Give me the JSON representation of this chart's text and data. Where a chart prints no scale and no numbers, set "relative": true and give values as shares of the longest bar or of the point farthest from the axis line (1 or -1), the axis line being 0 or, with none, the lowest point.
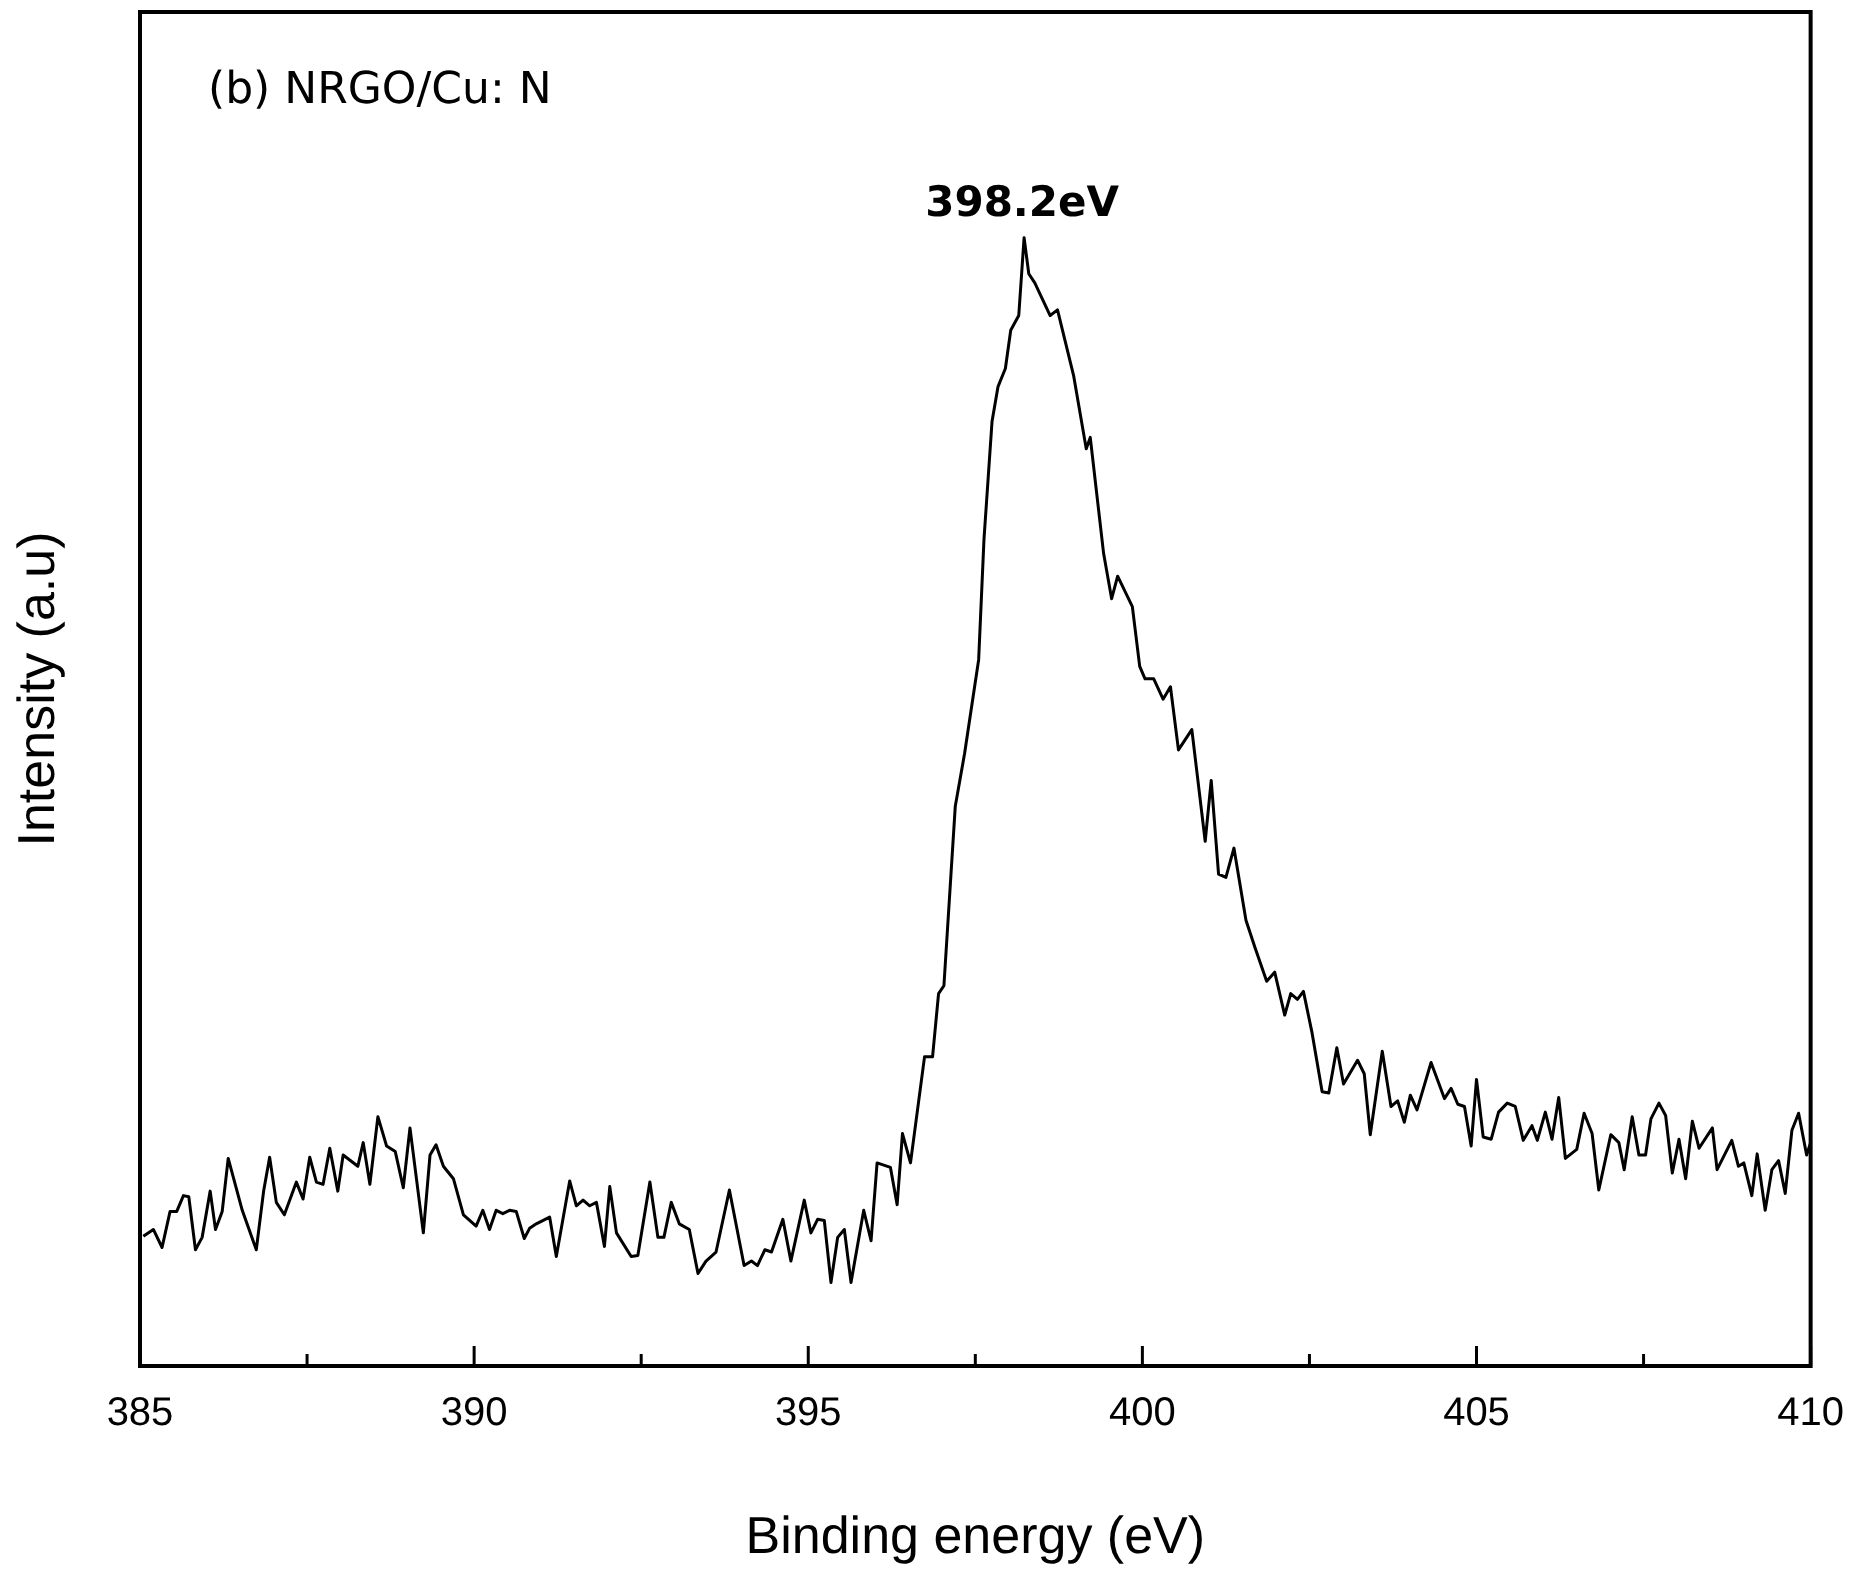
{
  "chart_data": {
    "type": "line",
    "relative": true,
    "xlabel": "Binding energy (eV)",
    "ylabel": "Intensity (a.u)",
    "annotations": [
      "(b) NRGO/Cu: N",
      {
        "text": "398.2eV",
        "x": 398.2,
        "y": 1
      }
    ],
    "xlim": [
      385,
      410
    ],
    "xticks": [
      385,
      {
        "value": 387.5,
        "label": null
      },
      390,
      {
        "value": 392.5,
        "label": null
      },
      395,
      {
        "value": 397.5,
        "label": null
      },
      400,
      {
        "value": 402.5,
        "label": null
      },
      405,
      {
        "value": 407.5,
        "label": null
      },
      410
    ],
    "grid": false,
    "legend": false,
    "marker": "none",
    "line_style": "solid",
    "series": [
      {
        "color": "#000000",
        "x": [
          385.05,
          385.2,
          385.33,
          385.45,
          385.55,
          385.65,
          385.73,
          385.83,
          385.93,
          386.05,
          386.13,
          386.23,
          386.32,
          386.53,
          386.74,
          386.85,
          386.94,
          387.04,
          387.16,
          387.34,
          387.44,
          387.54,
          387.64,
          387.74,
          387.84,
          387.96,
          388.04,
          388.26,
          388.34,
          388.44,
          388.56,
          388.69,
          388.82,
          388.94,
          389.04,
          389.24,
          389.34,
          389.43,
          389.54,
          389.69,
          389.84,
          390.03,
          390.13,
          390.23,
          390.33,
          390.43,
          390.53,
          390.63,
          390.75,
          390.83,
          390.93,
          391.13,
          391.23,
          391.43,
          391.53,
          391.63,
          391.73,
          391.83,
          391.95,
          392.03,
          392.13,
          392.35,
          392.45,
          392.63,
          392.75,
          392.84,
          392.95,
          393.07,
          393.22,
          393.35,
          393.47,
          393.62,
          393.82,
          394.04,
          394.15,
          394.24,
          394.35,
          394.45,
          394.62,
          394.74,
          394.94,
          395.04,
          395.14,
          395.24,
          395.34,
          395.44,
          395.54,
          395.64,
          395.83,
          395.94,
          396.03,
          396.23,
          396.33,
          396.41,
          396.53,
          396.74,
          396.86,
          396.95,
          397.03,
          397.2,
          397.34,
          397.55,
          397.63,
          397.75,
          397.84,
          397.95,
          398.03,
          398.15,
          398.23,
          398.3,
          398.39,
          398.62,
          398.73,
          398.97,
          399.16,
          399.22,
          399.42,
          399.54,
          399.63,
          399.85,
          399.96,
          400.04,
          400.17,
          400.31,
          400.42,
          400.54,
          400.74,
          400.94,
          401.03,
          401.14,
          401.25,
          401.37,
          401.55,
          401.69,
          401.86,
          401.98,
          402.13,
          402.22,
          402.32,
          402.41,
          402.54,
          402.69,
          402.79,
          402.91,
          403.01,
          403.22,
          403.32,
          403.41,
          403.59,
          403.72,
          403.82,
          403.92,
          404.01,
          404.11,
          404.32,
          404.52,
          404.62,
          404.72,
          404.82,
          404.92,
          405.0,
          405.1,
          405.22,
          405.33,
          405.46,
          405.58,
          405.7,
          405.83,
          405.91,
          406.03,
          406.13,
          406.23,
          406.33,
          406.5,
          406.61,
          406.73,
          406.83,
          407.01,
          407.13,
          407.21,
          407.33,
          407.43,
          407.53,
          407.61,
          407.73,
          407.83,
          407.93,
          408.03,
          408.13,
          408.23,
          408.33,
          408.53,
          408.6,
          408.82,
          408.92,
          409.0,
          409.12,
          409.2,
          409.32,
          409.42,
          409.52,
          409.62,
          409.72,
          409.82,
          409.94,
          410.0
        ],
        "values": [
          0.115,
          0.121,
          0.105,
          0.137,
          0.137,
          0.151,
          0.15,
          0.103,
          0.114,
          0.155,
          0.121,
          0.137,
          0.184,
          0.138,
          0.103,
          0.155,
          0.185,
          0.145,
          0.134,
          0.163,
          0.148,
          0.185,
          0.163,
          0.161,
          0.193,
          0.155,
          0.187,
          0.177,
          0.198,
          0.161,
          0.221,
          0.195,
          0.19,
          0.158,
          0.211,
          0.118,
          0.187,
          0.196,
          0.177,
          0.166,
          0.134,
          0.124,
          0.138,
          0.121,
          0.138,
          0.135,
          0.138,
          0.137,
          0.113,
          0.122,
          0.126,
          0.132,
          0.097,
          0.164,
          0.142,
          0.147,
          0.142,
          0.145,
          0.106,
          0.159,
          0.118,
          0.097,
          0.098,
          0.163,
          0.114,
          0.114,
          0.145,
          0.126,
          0.121,
          0.082,
          0.093,
          0.101,
          0.156,
          0.089,
          0.093,
          0.089,
          0.103,
          0.101,
          0.13,
          0.093,
          0.147,
          0.118,
          0.13,
          0.129,
          0.074,
          0.114,
          0.121,
          0.074,
          0.138,
          0.111,
          0.18,
          0.176,
          0.143,
          0.206,
          0.18,
          0.274,
          0.274,
          0.33,
          0.337,
          0.496,
          0.543,
          0.626,
          0.733,
          0.837,
          0.868,
          0.884,
          0.918,
          0.931,
          1.0,
          0.968,
          0.96,
          0.931,
          0.936,
          0.878,
          0.813,
          0.823,
          0.72,
          0.68,
          0.7,
          0.673,
          0.62,
          0.609,
          0.609,
          0.591,
          0.602,
          0.546,
          0.564,
          0.465,
          0.519,
          0.436,
          0.433,
          0.459,
          0.395,
          0.37,
          0.341,
          0.349,
          0.311,
          0.33,
          0.325,
          0.332,
          0.295,
          0.243,
          0.242,
          0.282,
          0.25,
          0.271,
          0.259,
          0.205,
          0.279,
          0.23,
          0.235,
          0.216,
          0.24,
          0.227,
          0.269,
          0.237,
          0.246,
          0.232,
          0.23,
          0.195,
          0.254,
          0.203,
          0.201,
          0.225,
          0.233,
          0.23,
          0.2,
          0.213,
          0.2,
          0.225,
          0.201,
          0.238,
          0.184,
          0.192,
          0.224,
          0.206,
          0.156,
          0.205,
          0.198,
          0.174,
          0.221,
          0.187,
          0.187,
          0.219,
          0.233,
          0.222,
          0.171,
          0.201,
          0.166,
          0.217,
          0.193,
          0.211,
          0.174,
          0.2,
          0.177,
          0.18,
          0.151,
          0.188,
          0.138,
          0.174,
          0.182,
          0.153,
          0.209,
          0.224,
          0.187,
          0.198
        ]
      }
    ]
  }
}
